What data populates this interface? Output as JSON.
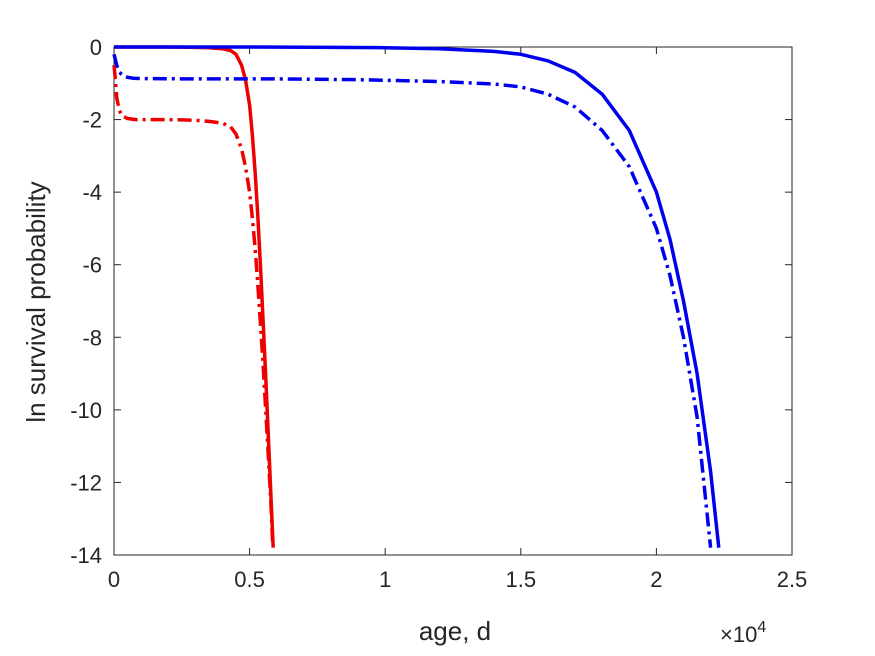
{
  "chart_data": {
    "type": "line",
    "xlabel": "age, d",
    "ylabel": "ln survival probability",
    "x_exponent_label": "×10",
    "x_exponent_power": "4",
    "xlim": [
      0,
      25000
    ],
    "ylim": [
      -14,
      0
    ],
    "grid": false,
    "xticks": [
      0,
      5000,
      10000,
      15000,
      20000,
      25000
    ],
    "xtick_labels": [
      "0",
      "0.5",
      "1",
      "1.5",
      "2",
      "2.5"
    ],
    "yticks": [
      0,
      -2,
      -4,
      -6,
      -8,
      -10,
      -12,
      -14
    ],
    "ytick_labels": [
      "0",
      "-2",
      "-4",
      "-6",
      "-8",
      "-10",
      "-12",
      "-14"
    ],
    "series": [
      {
        "color": "#ee0000",
        "dash": "solid",
        "x": [
          0,
          1000,
          2000,
          3000,
          3500,
          4000,
          4300,
          4500,
          4700,
          4850,
          5000,
          5100,
          5200,
          5300,
          5400,
          5500,
          5600,
          5700,
          5800,
          5870
        ],
        "y": [
          0,
          0,
          0,
          -0.01,
          -0.02,
          -0.05,
          -0.1,
          -0.2,
          -0.5,
          -0.9,
          -1.6,
          -2.4,
          -3.4,
          -4.6,
          -6.0,
          -7.6,
          -9.2,
          -10.9,
          -12.6,
          -13.8
        ]
      },
      {
        "color": "#ee0000",
        "dash": "dashdot",
        "x": [
          0,
          50,
          100,
          200,
          300,
          500,
          800,
          1000,
          1500,
          2000,
          2500,
          3000,
          3500,
          4000,
          4300,
          4500,
          4700,
          4850,
          5000,
          5100,
          5200,
          5300,
          5400,
          5500,
          5600,
          5700,
          5800,
          5850
        ],
        "y": [
          -0.5,
          -0.9,
          -1.4,
          -1.75,
          -1.9,
          -1.97,
          -2.0,
          -2.0,
          -2.0,
          -2.0,
          -2.01,
          -2.02,
          -2.05,
          -2.1,
          -2.2,
          -2.4,
          -2.8,
          -3.3,
          -4.0,
          -4.7,
          -5.5,
          -6.5,
          -7.6,
          -8.8,
          -10.1,
          -11.4,
          -12.8,
          -13.7
        ]
      },
      {
        "color": "#0000ee",
        "dash": "solid",
        "x": [
          0,
          5000,
          10000,
          12000,
          14000,
          15000,
          16000,
          17000,
          18000,
          19000,
          20000,
          20500,
          21000,
          21500,
          22000,
          22300
        ],
        "y": [
          0,
          0,
          -0.02,
          -0.05,
          -0.12,
          -0.2,
          -0.38,
          -0.7,
          -1.3,
          -2.3,
          -4.0,
          -5.3,
          -7.0,
          -9.0,
          -11.7,
          -13.8
        ]
      },
      {
        "color": "#0000ee",
        "dash": "dashdot",
        "x": [
          0,
          100,
          200,
          400,
          700,
          1000,
          3000,
          6000,
          9000,
          12000,
          14000,
          15000,
          16000,
          17000,
          18000,
          19000,
          20000,
          20500,
          21000,
          21500,
          22000
        ],
        "y": [
          -0.2,
          -0.5,
          -0.7,
          -0.82,
          -0.86,
          -0.87,
          -0.88,
          -0.88,
          -0.9,
          -0.95,
          -1.02,
          -1.1,
          -1.3,
          -1.65,
          -2.3,
          -3.3,
          -5.0,
          -6.3,
          -8.0,
          -10.2,
          -13.8
        ]
      }
    ]
  }
}
